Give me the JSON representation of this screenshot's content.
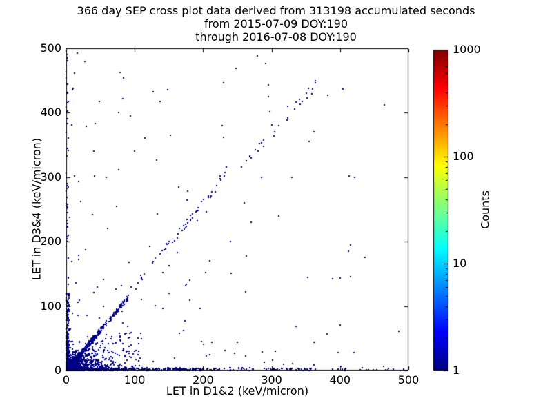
{
  "title": {
    "line1": "366 day SEP cross plot data derived from 313198 accumulated seconds",
    "line2": "from 2015-07-09 DOY:190",
    "line3": "through 2016-07-08 DOY:190"
  },
  "chart_data": {
    "type": "scatter",
    "title": "366 day SEP cross plot data derived from 313198 accumulated seconds from 2015-07-09 DOY:190 through 2016-07-08 DOY:190",
    "duration_days": 366,
    "accumulated_seconds": 313198,
    "start_date": "2015-07-09",
    "start_doy": 190,
    "end_date": "2016-07-08",
    "end_doy": 190,
    "xlabel": "LET in D1&2 (keV/micron)",
    "ylabel": "LET in D3&4 (keV/micron)",
    "xlim": [
      0,
      500
    ],
    "ylim": [
      0,
      500
    ],
    "x_ticks": [
      0,
      100,
      200,
      300,
      400,
      500
    ],
    "y_ticks": [
      0,
      100,
      200,
      300,
      400,
      500
    ],
    "grid": false,
    "legend": null,
    "colorbar": {
      "label": "Counts",
      "scale": "log",
      "min": 1,
      "max": 1000,
      "tick_labels": [
        "1000",
        "100",
        "10",
        "1"
      ],
      "colormap": "jet"
    },
    "count_colors": {
      "1": "#000085",
      "2": "#0000d9",
      "10": "#00e5ff",
      "60": "#7dff3c"
    },
    "density_regions": [
      {
        "kind": "cluster",
        "cx": 2,
        "cy": 2,
        "sx": 1.5,
        "sy": 1.5,
        "n": 140,
        "level": "60"
      },
      {
        "kind": "cluster",
        "cx": 3,
        "cy": 3,
        "sx": 3,
        "sy": 3,
        "n": 180,
        "level": "10"
      },
      {
        "kind": "cluster",
        "cx": 5,
        "cy": 5,
        "sx": 5,
        "sy": 5,
        "n": 240,
        "level": "2"
      },
      {
        "kind": "cluster",
        "cx": 9,
        "cy": 9,
        "sx": 9,
        "sy": 9,
        "n": 280,
        "level": "1"
      },
      {
        "kind": "cluster",
        "cx": 15,
        "cy": 15,
        "sx": 13,
        "sy": 13,
        "n": 170,
        "level": "1"
      },
      {
        "kind": "hband",
        "x0": 0,
        "x1": 60,
        "y0": 0,
        "y1": 3,
        "n": 210,
        "decay": false,
        "level": "2"
      },
      {
        "kind": "hband",
        "x0": 0,
        "x1": 200,
        "y0": 0,
        "y1": 4,
        "n": 430,
        "decay": true,
        "level": "1"
      },
      {
        "kind": "hband",
        "x0": 150,
        "x1": 360,
        "y0": 0,
        "y1": 4,
        "n": 110,
        "decay": false,
        "level": "1"
      },
      {
        "kind": "hband",
        "x0": 360,
        "x1": 500,
        "y0": 0,
        "y1": 3,
        "n": 16,
        "decay": false,
        "level": "1"
      },
      {
        "kind": "vband",
        "x0": 0,
        "x1": 3,
        "y0": 0,
        "y1": 60,
        "n": 170,
        "decay": false,
        "level": "2"
      },
      {
        "kind": "vband",
        "x0": 0,
        "x1": 4,
        "y0": 0,
        "y1": 120,
        "n": 230,
        "decay": true,
        "level": "1"
      },
      {
        "kind": "vband",
        "x0": 0,
        "x1": 3,
        "y0": 120,
        "y1": 500,
        "n": 45,
        "decay": false,
        "level": "1"
      },
      {
        "kind": "diag",
        "x0": 8,
        "x1": 45,
        "slope": 1.2,
        "width": 4,
        "n": 170,
        "decay": false,
        "level": "2"
      },
      {
        "kind": "diag",
        "x0": 8,
        "x1": 90,
        "slope": 1.25,
        "width": 8,
        "n": 330,
        "decay": true,
        "level": "1"
      },
      {
        "kind": "diag",
        "x0": 90,
        "x1": 240,
        "slope": 1.3,
        "width": 12,
        "n": 55,
        "decay": false,
        "level": "1"
      },
      {
        "kind": "diag",
        "x0": 240,
        "x1": 365,
        "slope": 1.22,
        "width": 16,
        "n": 24,
        "decay": false,
        "level": "1"
      },
      {
        "kind": "fan",
        "x0": 5,
        "x1": 110,
        "ymax": 60,
        "n": 200,
        "level": "1"
      },
      {
        "kind": "fan",
        "x0": 5,
        "x1": 60,
        "ymax": 35,
        "n": 150,
        "level": "1"
      },
      {
        "kind": "field",
        "n": 130,
        "level": "1"
      }
    ],
    "sparse_points": [
      [
        1,
        490
      ],
      [
        2,
        430
      ],
      [
        354,
        438
      ],
      [
        341,
        421
      ],
      [
        300,
        381
      ],
      [
        282,
        352
      ],
      [
        228,
        380
      ],
      [
        234,
        316
      ],
      [
        231,
        302
      ],
      [
        205,
        246
      ],
      [
        192,
        232
      ],
      [
        162,
        183
      ],
      [
        150,
        163
      ],
      [
        141,
        152
      ],
      [
        122,
        193
      ],
      [
        100,
        341
      ],
      [
        40,
        341
      ],
      [
        41,
        302
      ],
      [
        38,
        242
      ],
      [
        8,
        381
      ],
      [
        12,
        302
      ],
      [
        21,
        262
      ],
      [
        60,
        221
      ],
      [
        81,
        132
      ],
      [
        130,
        101
      ],
      [
        141,
        96
      ],
      [
        171,
        62
      ],
      [
        201,
        41
      ],
      [
        232,
        31
      ],
      [
        262,
        22
      ],
      [
        301,
        16
      ],
      [
        331,
        11
      ],
      [
        362,
        9
      ],
      [
        401,
        6
      ],
      [
        432,
        4
      ],
      [
        471,
        3
      ],
      [
        486,
        61
      ],
      [
        241,
        151
      ],
      [
        262,
        122
      ],
      [
        310,
        240
      ],
      [
        330,
        300
      ],
      [
        355,
        355
      ],
      [
        260,
        260
      ],
      [
        285,
        300
      ],
      [
        150,
        120
      ],
      [
        180,
        140
      ],
      [
        210,
        170
      ],
      [
        240,
        200
      ],
      [
        270,
        230
      ]
    ]
  }
}
